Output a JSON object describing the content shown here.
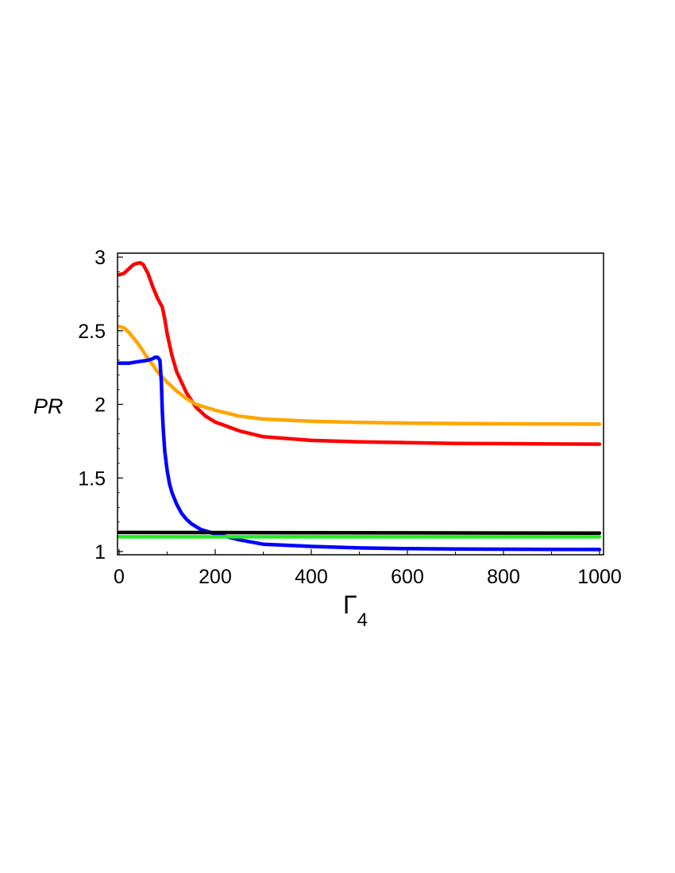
{
  "chart_data": {
    "type": "line",
    "title": "",
    "xlabel": "Γ",
    "xlabel_subscript": "4",
    "ylabel": "PR",
    "xlim": [
      0,
      1000
    ],
    "ylim": [
      1,
      3
    ],
    "xticks": [
      0,
      200,
      400,
      600,
      800,
      1000
    ],
    "yticks": [
      1,
      1.5,
      2,
      2.5,
      3
    ],
    "grid": false,
    "legend": "none",
    "series": [
      {
        "color": "#ff0000",
        "x": [
          0,
          10,
          20,
          30,
          40,
          45,
          50,
          60,
          70,
          80,
          85,
          90,
          95,
          100,
          110,
          120,
          140,
          160,
          180,
          200,
          250,
          300,
          400,
          500,
          600,
          700,
          800,
          900,
          1000
        ],
        "y": [
          2.88,
          2.89,
          2.92,
          2.95,
          2.96,
          2.96,
          2.95,
          2.89,
          2.8,
          2.72,
          2.69,
          2.66,
          2.58,
          2.48,
          2.33,
          2.22,
          2.08,
          1.98,
          1.92,
          1.88,
          1.82,
          1.78,
          1.755,
          1.745,
          1.74,
          1.735,
          1.733,
          1.731,
          1.73
        ]
      },
      {
        "color": "#ffa500",
        "x": [
          0,
          10,
          20,
          30,
          40,
          50,
          60,
          70,
          80,
          100,
          120,
          140,
          160,
          200,
          250,
          300,
          400,
          500,
          600,
          700,
          800,
          900,
          1000
        ],
        "y": [
          2.53,
          2.52,
          2.49,
          2.45,
          2.41,
          2.36,
          2.31,
          2.27,
          2.22,
          2.15,
          2.09,
          2.04,
          2.0,
          1.96,
          1.92,
          1.9,
          1.885,
          1.877,
          1.873,
          1.87,
          1.868,
          1.867,
          1.866
        ]
      },
      {
        "color": "#0000ff",
        "x": [
          0,
          20,
          40,
          60,
          70,
          75,
          80,
          85,
          88,
          90,
          92,
          95,
          100,
          105,
          110,
          120,
          130,
          140,
          150,
          170,
          200,
          250,
          300,
          400,
          500,
          600,
          700,
          800,
          900,
          1000
        ],
        "y": [
          2.28,
          2.28,
          2.29,
          2.3,
          2.31,
          2.32,
          2.32,
          2.3,
          2.15,
          1.95,
          1.82,
          1.68,
          1.55,
          1.46,
          1.4,
          1.32,
          1.26,
          1.22,
          1.19,
          1.15,
          1.12,
          1.08,
          1.05,
          1.035,
          1.025,
          1.02,
          1.018,
          1.016,
          1.015,
          1.014
        ]
      },
      {
        "color": "#000000",
        "x": [
          0,
          1000
        ],
        "y": [
          1.13,
          1.125
        ]
      },
      {
        "color": "#22ee22",
        "x": [
          0,
          1000
        ],
        "y": [
          1.1,
          1.1
        ]
      }
    ]
  }
}
